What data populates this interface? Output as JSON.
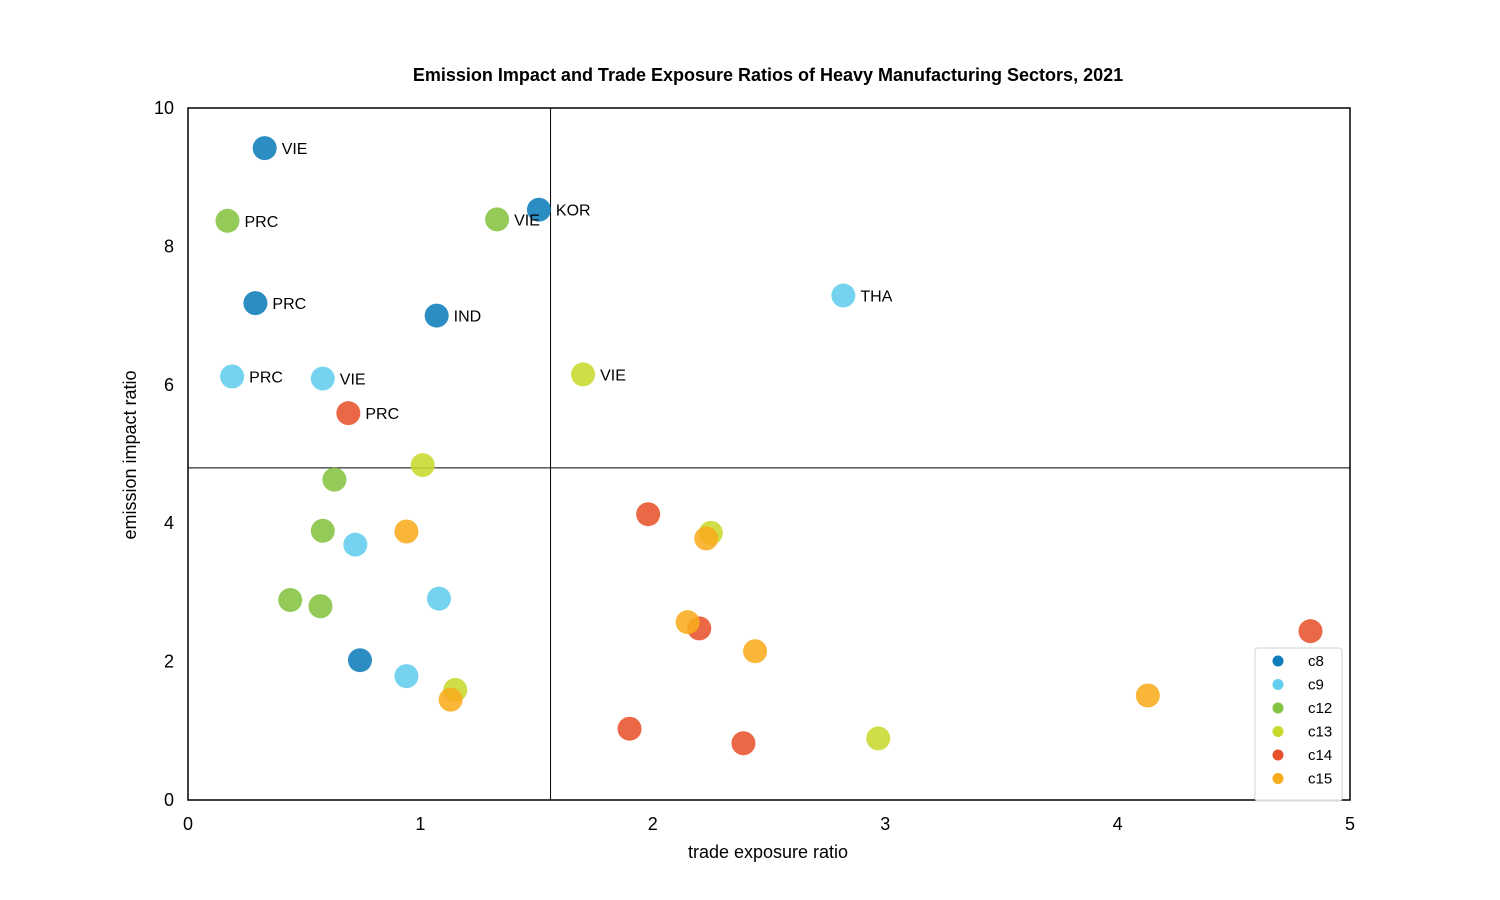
{
  "chart_data": {
    "type": "scatter",
    "title": "Emission Impact and Trade Exposure Ratios of Heavy Manufacturing Sectors, 2021",
    "xlabel": "trade exposure ratio",
    "ylabel": "emission impact ratio",
    "xlim": [
      0,
      5
    ],
    "ylim": [
      0,
      10
    ],
    "xticks": [
      "0",
      "1",
      "2",
      "3",
      "4",
      "5"
    ],
    "yticks": [
      "0",
      "2",
      "4",
      "6",
      "8",
      "10"
    ],
    "grid": false,
    "legend_position": "bottom-right",
    "reference_lines": {
      "x": 1.56,
      "y": 4.8
    },
    "series": [
      {
        "name": "c8",
        "color": "#0f7dbb",
        "points": [
          {
            "x": 0.33,
            "y": 9.42,
            "label": "VIE"
          },
          {
            "x": 1.51,
            "y": 8.53,
            "label": "KOR"
          },
          {
            "x": 0.29,
            "y": 7.18,
            "label": "PRC"
          },
          {
            "x": 1.07,
            "y": 7.0,
            "label": "IND"
          },
          {
            "x": 0.74,
            "y": 2.02,
            "label": ""
          }
        ]
      },
      {
        "name": "c9",
        "color": "#63cdee",
        "points": [
          {
            "x": 2.82,
            "y": 7.29,
            "label": "THA"
          },
          {
            "x": 0.19,
            "y": 6.12,
            "label": "PRC"
          },
          {
            "x": 0.58,
            "y": 6.09,
            "label": "VIE"
          },
          {
            "x": 0.72,
            "y": 3.69,
            "label": ""
          },
          {
            "x": 1.08,
            "y": 2.91,
            "label": ""
          },
          {
            "x": 0.94,
            "y": 1.79,
            "label": ""
          }
        ]
      },
      {
        "name": "c12",
        "color": "#84c341",
        "points": [
          {
            "x": 0.17,
            "y": 8.37,
            "label": "PRC"
          },
          {
            "x": 1.33,
            "y": 8.39,
            "label": "VIE"
          },
          {
            "x": 0.63,
            "y": 4.63,
            "label": ""
          },
          {
            "x": 0.58,
            "y": 3.89,
            "label": ""
          },
          {
            "x": 0.44,
            "y": 2.89,
            "label": ""
          },
          {
            "x": 0.57,
            "y": 2.8,
            "label": ""
          }
        ]
      },
      {
        "name": "c13",
        "color": "#c8d92c",
        "points": [
          {
            "x": 1.7,
            "y": 6.15,
            "label": "VIE"
          },
          {
            "x": 1.01,
            "y": 4.84,
            "label": ""
          },
          {
            "x": 2.25,
            "y": 3.86,
            "label": ""
          },
          {
            "x": 1.15,
            "y": 1.59,
            "label": ""
          },
          {
            "x": 2.97,
            "y": 0.89,
            "label": ""
          }
        ]
      },
      {
        "name": "c14",
        "color": "#e8532e",
        "points": [
          {
            "x": 0.69,
            "y": 5.59,
            "label": "PRC"
          },
          {
            "x": 1.98,
            "y": 4.13,
            "label": ""
          },
          {
            "x": 2.2,
            "y": 2.48,
            "label": ""
          },
          {
            "x": 4.83,
            "y": 2.44,
            "label": ""
          },
          {
            "x": 1.9,
            "y": 1.03,
            "label": ""
          },
          {
            "x": 2.39,
            "y": 0.82,
            "label": ""
          }
        ]
      },
      {
        "name": "c15",
        "color": "#f8ac1c",
        "points": [
          {
            "x": 0.94,
            "y": 3.88,
            "label": ""
          },
          {
            "x": 2.23,
            "y": 3.78,
            "label": ""
          },
          {
            "x": 2.15,
            "y": 2.57,
            "label": ""
          },
          {
            "x": 2.44,
            "y": 2.15,
            "label": ""
          },
          {
            "x": 4.13,
            "y": 1.51,
            "label": ""
          },
          {
            "x": 1.13,
            "y": 1.45,
            "label": ""
          }
        ]
      }
    ]
  }
}
